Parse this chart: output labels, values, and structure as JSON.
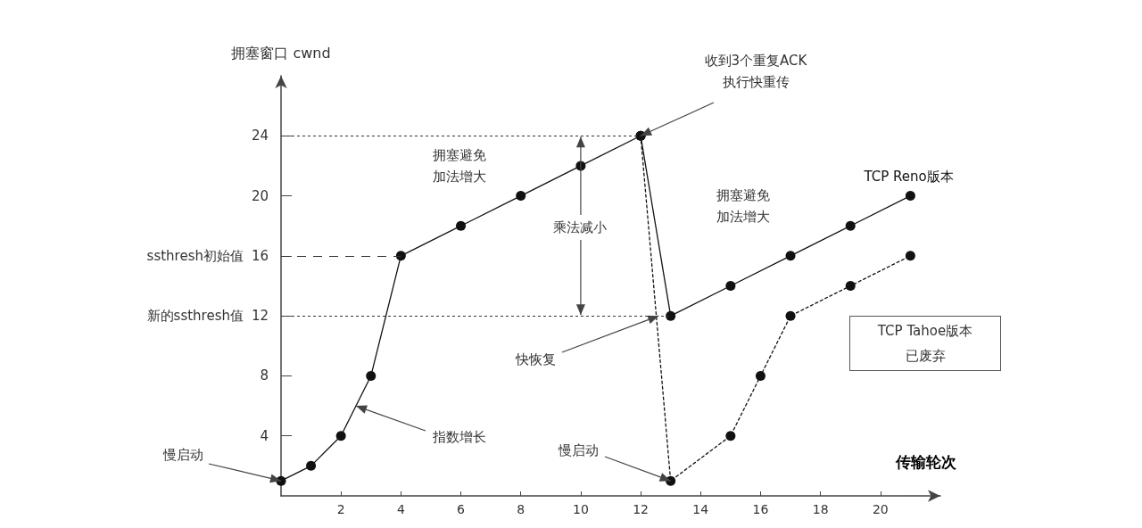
{
  "chart_data": {
    "type": "line",
    "xlabel": "传输轮次",
    "ylabel": "拥塞窗口 cwnd",
    "xlim": [
      0,
      22
    ],
    "xticks": [
      2,
      4,
      6,
      8,
      10,
      12,
      14,
      16,
      18,
      20
    ],
    "ylim": [
      0,
      28
    ],
    "yticks": [
      4,
      8,
      12,
      16,
      20,
      24
    ],
    "marker": "circle",
    "legend": false,
    "grid": false,
    "series": [
      {
        "name": "TCP Reno版本",
        "color": "#111111",
        "line_style": "solid",
        "x": [
          0,
          1,
          2,
          3,
          4,
          6,
          8,
          10,
          12,
          13,
          15,
          17,
          19,
          21
        ],
        "values": [
          1,
          2,
          4,
          8,
          16,
          18,
          20,
          22,
          24,
          12,
          14,
          16,
          18,
          20
        ]
      },
      {
        "color": "#111111",
        "line_style": "dotted",
        "x": [
          12,
          13,
          15,
          16,
          17,
          19,
          21
        ],
        "values": [
          24,
          1,
          4,
          8,
          12,
          14,
          16
        ]
      }
    ],
    "ref_lines": [
      {
        "axis": "y",
        "value": 16,
        "label": "ssthresh初始值",
        "line_style": "dashed",
        "color": "#333333"
      },
      {
        "axis": "y",
        "value": 12,
        "label": "新的ssthresh值",
        "line_style": "dotted",
        "color": "#333333"
      },
      {
        "axis": "y",
        "value": 24,
        "line_style": "dotted",
        "color": "#333333"
      }
    ],
    "annotations": [
      {
        "text": "收到3个重复ACK\n执行快重传",
        "x": 12,
        "y": 24
      },
      "拥塞避免",
      "加法增大",
      {
        "text": "乘法减小",
        "x": 10,
        "y": 12
      },
      "拥塞避免",
      "加法增大",
      {
        "text": "快恢复",
        "x": 12.6,
        "y": 12
      },
      {
        "text": "慢启动",
        "x": 0,
        "y": 1
      },
      {
        "text": "指数增长",
        "x": 2.5,
        "y": 6
      },
      {
        "text": "慢启动",
        "x": 13,
        "y": 1
      },
      "TCP Tahoe版本",
      "已废弃"
    ]
  }
}
